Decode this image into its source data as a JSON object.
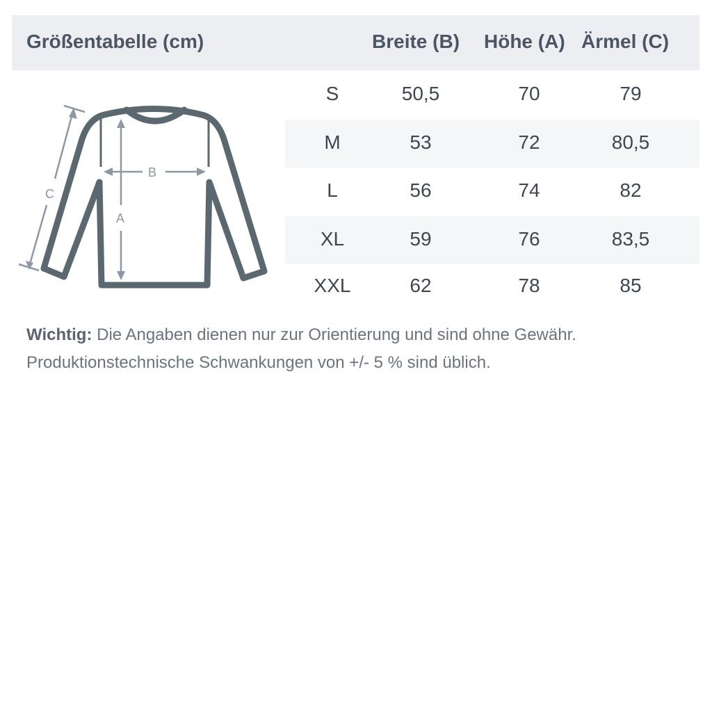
{
  "header": {
    "title": "Größentabelle (cm)",
    "columns": [
      "Breite (B)",
      "Höhe (A)",
      "Ärmel (C)"
    ]
  },
  "diagram": {
    "labels": {
      "width": "B",
      "height": "A",
      "sleeve": "C"
    },
    "outline_color": "#5b6870",
    "annotation_color": "#8d98a4"
  },
  "rows": [
    {
      "size": "S",
      "breite": "50,5",
      "hoehe": "70",
      "aermel": "79"
    },
    {
      "size": "M",
      "breite": "53",
      "hoehe": "72",
      "aermel": "80,5"
    },
    {
      "size": "L",
      "breite": "56",
      "hoehe": "74",
      "aermel": "82"
    },
    {
      "size": "XL",
      "breite": "59",
      "hoehe": "76",
      "aermel": "83,5"
    },
    {
      "size": "XXL",
      "breite": "62",
      "hoehe": "78",
      "aermel": "85"
    }
  ],
  "note": {
    "label": "Wichtig:",
    "line1": " Die Angaben dienen nur zur Orientierung und sind ohne Gewähr.",
    "line2": "Produktionstechnische Schwankungen von +/- 5 % sind üblich."
  }
}
